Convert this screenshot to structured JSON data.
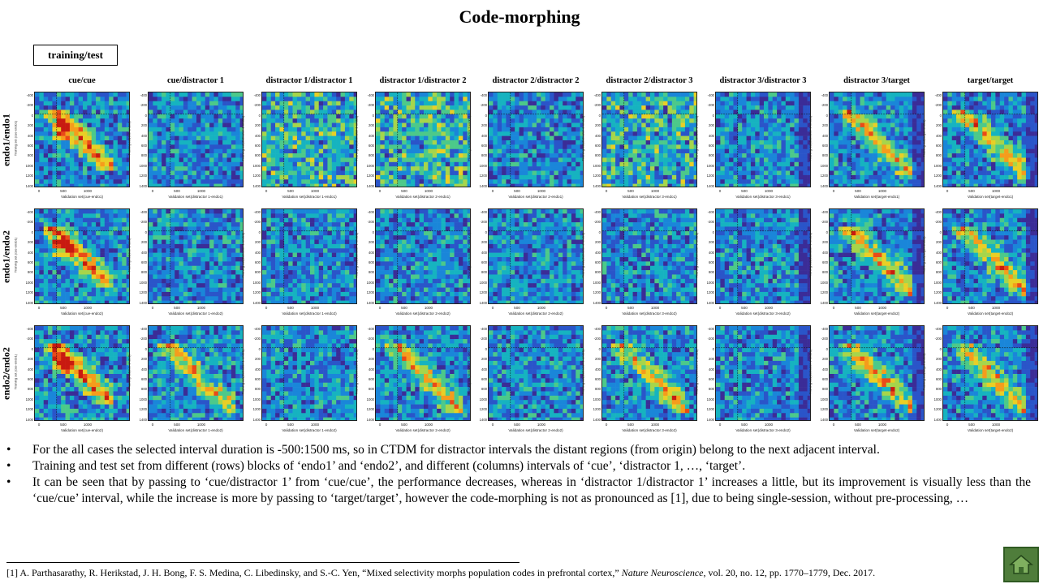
{
  "slide": {
    "title": "Code-morphing",
    "legend_box": "training/test"
  },
  "columns": [
    "cue/cue",
    "cue/distractor 1",
    "distractor 1/distractor 1",
    "distractor 1/distractor 2",
    "distractor 2/distractor 2",
    "distractor 2/distractor 3",
    "distractor 3/distractor 3",
    "distractor 3/target",
    "target/target"
  ],
  "rows": [
    "endo1/endo1",
    "endo1/endo2",
    "endo2/endo2"
  ],
  "y_axis_labels": [
    "Training set (cue-endo1)",
    "Training set(cue-endo1)",
    "Training set(distractor 1-endo1)",
    "Training set(distractor 1-endo1)",
    "Training set(distractor 2-endo1)",
    "Training set(distractor 2-endo1)",
    "Training set(distractor 3-endo1)",
    "Training set(distractor 3-endo1)",
    "Training set(target-endo1)"
  ],
  "x_axis_labels": [
    [
      "Validation set(cue-endo1)",
      "Validation set(distractor 1-endo1)",
      "Validation set(distractor 1-endo1)",
      "Validation set(distractor 2-endo1)",
      "Validation set(distractor 2-endo1)",
      "Validation set(distractor 3-endo1)",
      "Validation set(distractor 3-endo1)",
      "Validation set(target-endo1)",
      "Validation set(target-endo1)"
    ],
    [
      "Validation set(cue-endo2)",
      "Validation set(distractor 1-endo2)",
      "Validation set(distractor 1-endo2)",
      "Validation set(distractor 2-endo2)",
      "Validation set(distractor 2-endo2)",
      "Validation set(distractor 3-endo2)",
      "Validation set(distractor 3-endo2)",
      "Validation set(target-endo2)",
      "Validation set(target-endo2)"
    ],
    [
      "Validation set(cue-endo2)",
      "Validation set(distractor 1-endo2)",
      "Validation set(distractor 1-endo2)",
      "Validation set(distractor 2-endo2)",
      "Validation set(distractor 2-endo2)",
      "Validation set(distractor 3-endo2)",
      "Validation set(distractor 3-endo2)",
      "Validation set(target-endo2)",
      "Validation set(target-endo2)"
    ]
  ],
  "x_ticks": [
    "0",
    "500",
    "1000"
  ],
  "y_ticks": [
    "-400",
    "-200",
    "0",
    "200",
    "400",
    "600",
    "800",
    "1000",
    "1200",
    "1400"
  ],
  "colormap": [
    "#3b2c97",
    "#2a55c9",
    "#1a86d9",
    "#16b3c0",
    "#4cc98a",
    "#a6d54b",
    "#e9cf26",
    "#f59c1c",
    "#e94a18",
    "#c81a10"
  ],
  "bullets": [
    "For the all cases the selected interval duration is -500:1500 ms, so in CTDM for distractor intervals the distant regions (from origin) belong to the next adjacent interval.",
    "Training and test set from different (rows) blocks of ‘endo1’ and ‘endo2’, and different (columns) intervals  of ‘cue’, ‘distractor 1, …, ‘target’.",
    "It can be seen that by passing to ‘cue/distractor 1’ from ‘cue/cue’, the performance decreases, whereas in ‘distractor 1/distractor 1’ increases a little, but its improvement is visually less than the ‘cue/cue’ interval, while the increase is more by passing to ‘target/target’, however the code-morphing is not as pronounced as [1], due to being single-session, without pre-processing, …"
  ],
  "footnote": {
    "before": "[1]  A. Parthasarathy, R. Herikstad, J. H. Bong, F. S. Medina, C. Libedinsky, and S.-C. Yen, “Mixed selectivity morphs population codes in prefrontal cortex,” ",
    "journal": "Nature Neuroscience",
    "after": ", vol. 20, no. 12, pp. 1770–1779,  Dec. 2017."
  },
  "nav": {
    "home_icon": "home-icon"
  }
}
